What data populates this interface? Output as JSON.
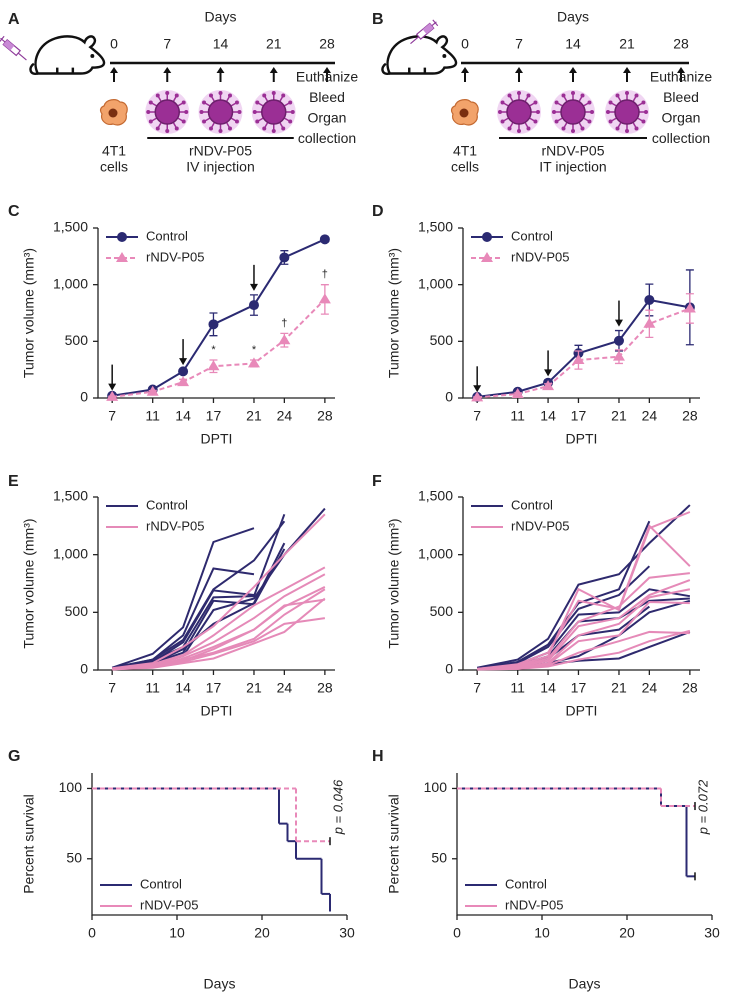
{
  "schedules": [
    {
      "panel": "A",
      "axis_label": "Days",
      "days": [
        0,
        7,
        14,
        21,
        28
      ],
      "cells_label": [
        "4T1",
        "cells"
      ],
      "treatment": [
        "rNDV-P05",
        "IV injection"
      ],
      "endpoint": [
        "Euthanize",
        "Bleed",
        "Organ",
        "collection"
      ]
    },
    {
      "panel": "B",
      "axis_label": "Days",
      "days": [
        0,
        7,
        14,
        21,
        28
      ],
      "cells_label": [
        "4T1",
        "cells"
      ],
      "treatment": [
        "rNDV-P05",
        "IT injection"
      ],
      "endpoint": [
        "Euthanize",
        "Bleed",
        "Organ",
        "collection"
      ]
    }
  ],
  "chart_data": [
    {
      "panel": "C",
      "type": "line",
      "xlabel": "DPTI",
      "ylabel": "Tumor volume (mm³)",
      "x": [
        7,
        11,
        14,
        17,
        21,
        24,
        28
      ],
      "xlim": [
        5.6,
        29
      ],
      "xticks": [
        7,
        11,
        14,
        17,
        21,
        24,
        28
      ],
      "ylim": [
        0,
        1500
      ],
      "yticks": [
        0,
        500,
        {
          "value": 1000,
          "label": "1,000"
        },
        {
          "value": 1500,
          "label": "1,500"
        }
      ],
      "legend": "upper left",
      "arrows": [
        7,
        14,
        21
      ],
      "annotations": [
        {
          "text": "*",
          "x": 17
        },
        {
          "text": "*",
          "x": 21
        },
        {
          "text": "†",
          "x": 24
        },
        {
          "text": "†",
          "x": 28
        }
      ],
      "series": [
        {
          "name": "Control",
          "color": "#2b2a72",
          "marker": "circle",
          "dash": false,
          "values": [
            20,
            75,
            235,
            650,
            820,
            1240,
            1400
          ],
          "errors": [
            10,
            15,
            20,
            100,
            90,
            60,
            20
          ]
        },
        {
          "name": "rNDV-P05",
          "color": "#e889b9",
          "marker": "triangle",
          "dash": true,
          "values": [
            10,
            55,
            140,
            280,
            305,
            510,
            870
          ],
          "errors": [
            5,
            10,
            25,
            55,
            30,
            60,
            130
          ]
        }
      ]
    },
    {
      "panel": "D",
      "type": "line",
      "xlabel": "DPTI",
      "ylabel": "Tumor volume (mm³)",
      "x": [
        7,
        11,
        14,
        17,
        21,
        24,
        28
      ],
      "xlim": [
        5.6,
        29
      ],
      "xticks": [
        7,
        11,
        14,
        17,
        21,
        24,
        28
      ],
      "ylim": [
        0,
        1500
      ],
      "yticks": [
        0,
        500,
        {
          "value": 1000,
          "label": "1,000"
        },
        {
          "value": 1500,
          "label": "1,500"
        }
      ],
      "legend": "upper left",
      "arrows": [
        7,
        14,
        21
      ],
      "series": [
        {
          "name": "Control",
          "color": "#2b2a72",
          "marker": "circle",
          "dash": false,
          "values": [
            10,
            55,
            135,
            395,
            505,
            865,
            800
          ],
          "errors": [
            5,
            10,
            20,
            70,
            90,
            140,
            330
          ]
        },
        {
          "name": "rNDV-P05",
          "color": "#e889b9",
          "marker": "triangle",
          "dash": true,
          "values": [
            5,
            35,
            105,
            335,
            365,
            655,
            790
          ],
          "errors": [
            5,
            10,
            20,
            80,
            60,
            120,
            130
          ]
        }
      ]
    },
    {
      "panel": "E",
      "type": "line",
      "xlabel": "DPTI",
      "ylabel": "Tumor volume (mm³)",
      "x": [
        7,
        11,
        14,
        17,
        21,
        24,
        28
      ],
      "xlim": [
        5.6,
        29
      ],
      "xticks": [
        7,
        11,
        14,
        17,
        21,
        24,
        28
      ],
      "ylim": [
        0,
        1500
      ],
      "yticks": [
        0,
        500,
        {
          "value": 1000,
          "label": "1,000"
        },
        {
          "value": 1500,
          "label": "1,500"
        }
      ],
      "legend": "upper left",
      "series": [
        {
          "name": "Control",
          "color": "#2e2a6e",
          "lines": [
            [
              20,
              140,
              370,
              1110,
              1230,
              null,
              null
            ],
            [
              15,
              90,
              300,
              880,
              830,
              null,
              null
            ],
            [
              10,
              70,
              240,
              690,
              650,
              null,
              null
            ],
            [
              15,
              80,
              200,
              630,
              640,
              1350,
              null
            ],
            [
              10,
              60,
              150,
              600,
              570,
              1050,
              null
            ],
            [
              20,
              90,
              260,
              700,
              950,
              1290,
              null
            ],
            [
              10,
              50,
              120,
              520,
              620,
              1000,
              1400
            ],
            [
              10,
              60,
              180,
              400,
              580,
              1100,
              null
            ]
          ]
        },
        {
          "name": "rNDV-P05",
          "color": "#e58ab8",
          "lines": [
            [
              15,
              60,
              200,
              380,
              720,
              1000,
              1350
            ],
            [
              10,
              50,
              130,
              300,
              560,
              700,
              890
            ],
            [
              10,
              40,
              120,
              240,
              450,
              640,
              830
            ],
            [
              5,
              30,
              100,
              200,
              350,
              550,
              720
            ],
            [
              10,
              40,
              90,
              150,
              270,
              480,
              700
            ],
            [
              5,
              20,
              60,
              100,
              230,
              330,
              620
            ],
            [
              10,
              30,
              80,
              180,
              350,
              560,
              610
            ],
            [
              5,
              25,
              70,
              140,
              250,
              400,
              450
            ]
          ]
        }
      ]
    },
    {
      "panel": "F",
      "type": "line",
      "xlabel": "DPTI",
      "ylabel": "Tumor volume (mm³)",
      "x": [
        7,
        11,
        14,
        17,
        21,
        24,
        28
      ],
      "xlim": [
        5.6,
        29
      ],
      "xticks": [
        7,
        11,
        14,
        17,
        21,
        24,
        28
      ],
      "ylim": [
        0,
        1500
      ],
      "yticks": [
        0,
        500,
        {
          "value": 1000,
          "label": "1,000"
        },
        {
          "value": 1500,
          "label": "1,500"
        }
      ],
      "legend": "upper left",
      "series": [
        {
          "name": "Control",
          "color": "#2e2a6e",
          "lines": [
            [
              20,
              90,
              270,
              740,
              830,
              1100,
              1430
            ],
            [
              15,
              70,
              220,
              580,
              700,
              1290,
              null
            ],
            [
              10,
              60,
              200,
              530,
              650,
              900,
              null
            ],
            [
              10,
              50,
              150,
              480,
              500,
              700,
              640
            ],
            [
              10,
              40,
              120,
              420,
              450,
              600,
              620
            ],
            [
              5,
              30,
              100,
              300,
              350,
              550,
              null
            ],
            [
              5,
              20,
              60,
              120,
              300,
              500,
              600
            ],
            [
              10,
              20,
              50,
              80,
              100,
              200,
              330
            ]
          ]
        },
        {
          "name": "rNDV-P05",
          "color": "#e58ab8",
          "lines": [
            [
              10,
              40,
              120,
              700,
              520,
              1230,
              1370
            ],
            [
              10,
              50,
              150,
              600,
              530,
              1250,
              900
            ],
            [
              5,
              30,
              100,
              420,
              550,
              800,
              840
            ],
            [
              5,
              30,
              80,
              380,
              450,
              650,
              780
            ],
            [
              5,
              20,
              60,
              300,
              400,
              630,
              700
            ],
            [
              5,
              20,
              50,
              250,
              300,
              590,
              580
            ],
            [
              5,
              10,
              40,
              150,
              250,
              330,
              320
            ],
            [
              5,
              10,
              30,
              90,
              150,
              250,
              340
            ]
          ]
        }
      ]
    },
    {
      "panel": "G",
      "type": "step",
      "xlabel": "Days",
      "ylabel": "Percent survival",
      "xlim": [
        0,
        30
      ],
      "xticks": [
        0,
        10,
        20,
        30
      ],
      "ylim": [
        10,
        111
      ],
      "yticks": [
        50,
        100
      ],
      "legend": "lower left",
      "annotation": "p = 0.046",
      "series": [
        {
          "name": "Control",
          "color": "#2b2a72",
          "dash": false,
          "censored": false,
          "x": [
            0,
            22,
            23,
            24,
            27,
            28
          ],
          "values": [
            100,
            75,
            62.5,
            50,
            25,
            12.5
          ]
        },
        {
          "name": "rNDV-P05",
          "color": "#e889b9",
          "dash": true,
          "censored": true,
          "x": [
            0,
            24,
            28
          ],
          "values": [
            100,
            62.5,
            62.5
          ]
        }
      ]
    },
    {
      "panel": "H",
      "type": "step",
      "xlabel": "Days",
      "ylabel": "Percent survival",
      "xlim": [
        0,
        30
      ],
      "xticks": [
        0,
        10,
        20,
        30
      ],
      "ylim": [
        10,
        111
      ],
      "yticks": [
        50,
        100
      ],
      "legend": "lower left",
      "annotation": "p = 0.072",
      "series": [
        {
          "name": "Control",
          "color": "#2b2a72",
          "dash": false,
          "censored": true,
          "x": [
            0,
            24,
            27,
            28
          ],
          "values": [
            100,
            87.5,
            37.5,
            37.5
          ]
        },
        {
          "name": "rNDV-P05",
          "color": "#e889b9",
          "dash": true,
          "censored": true,
          "x": [
            0,
            24,
            28
          ],
          "values": [
            100,
            87.5,
            87.5
          ]
        }
      ]
    }
  ]
}
